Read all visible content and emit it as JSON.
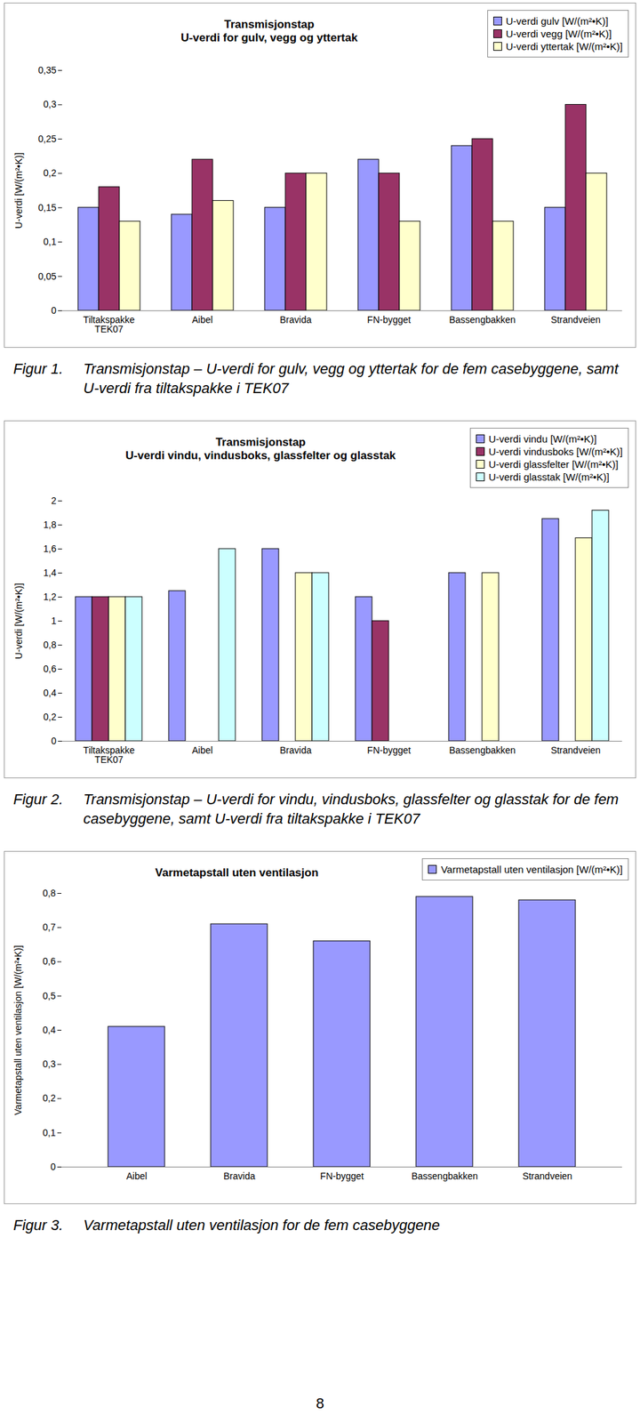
{
  "chart_data": [
    {
      "type": "bar",
      "title": "Transmisjonstap\nU-verdi for gulv, vegg og yttertak",
      "y_label": "U-verdi [W/(m²•K)]",
      "caption_number": "Figur 1.",
      "caption": "Transmisjonstap – U-verdi for gulv, vegg og yttertak for de fem casebyggene, samt U-verdi fra tiltakspakke i TEK07",
      "categories": [
        "Tiltakspakke\nTEK07",
        "Aibel",
        "Bravida",
        "FN-bygget",
        "Bassengbakken",
        "Strandveien"
      ],
      "series": [
        {
          "name": "U-verdi gulv [W/(m²•K)]",
          "color": "#9999ff",
          "values": [
            0.15,
            0.14,
            0.15,
            0.22,
            0.24,
            0.15
          ]
        },
        {
          "name": "U-verdi vegg [W/(m²•K)]",
          "color": "#993366",
          "values": [
            0.18,
            0.22,
            0.2,
            0.2,
            0.25,
            0.3
          ]
        },
        {
          "name": "U-verdi yttertak [W/(m²•K)]",
          "color": "#ffffcc",
          "values": [
            0.13,
            0.16,
            0.2,
            0.13,
            0.13,
            0.2
          ]
        }
      ],
      "ylim": [
        0,
        0.35
      ],
      "yticks": [
        0,
        {
          "value": 0.05,
          "label": "0,05"
        },
        {
          "value": 0.1,
          "label": "0,1"
        },
        {
          "value": 0.15,
          "label": "0,15"
        },
        {
          "value": 0.2,
          "label": "0,2"
        },
        {
          "value": 0.25,
          "label": "0,25"
        },
        {
          "value": 0.3,
          "label": "0,3"
        },
        {
          "value": 0.35,
          "label": "0,35"
        }
      ],
      "grid": false,
      "legend": "top-right"
    },
    {
      "type": "bar",
      "title": "Transmisjonstap\nU-verdi vindu, vindusboks, glassfelter og glasstak",
      "y_label": "U-verdi [W/(m²•K)]",
      "caption_number": "Figur 2.",
      "caption": "Transmisjonstap – U-verdi for vindu, vindusboks, glassfelter og glasstak for de fem casebyggene, samt U-verdi fra tiltakspakke i TEK07",
      "categories": [
        "Tiltakspakke\nTEK07",
        "Aibel",
        "Bravida",
        "FN-bygget",
        "Bassengbakken",
        "Strandveien"
      ],
      "series": [
        {
          "name": "U-verdi vindu [W/(m²•K)]",
          "color": "#9999ff",
          "values": [
            1.2,
            1.25,
            1.6,
            1.2,
            1.4,
            1.85
          ]
        },
        {
          "name": "U-verdi vindusboks [W/(m²•K)]",
          "color": "#993366",
          "values": [
            1.2,
            null,
            null,
            1.0,
            null,
            null
          ]
        },
        {
          "name": "U-verdi glassfelter [W/(m²•K)]",
          "color": "#ffffcc",
          "values": [
            1.2,
            null,
            1.4,
            null,
            1.4,
            1.69
          ]
        },
        {
          "name": "U-verdi glasstak [W/(m²•K)]",
          "color": "#ccffff",
          "values": [
            1.2,
            1.6,
            1.4,
            null,
            null,
            1.92
          ]
        }
      ],
      "ylim": [
        0,
        2
      ],
      "yticks": [
        0,
        {
          "value": 0.2,
          "label": "0,2"
        },
        {
          "value": 0.4,
          "label": "0,4"
        },
        {
          "value": 0.6,
          "label": "0,6"
        },
        {
          "value": 0.8,
          "label": "0,8"
        },
        1,
        {
          "value": 1.2,
          "label": "1,2"
        },
        {
          "value": 1.4,
          "label": "1,4"
        },
        {
          "value": 1.6,
          "label": "1,6"
        },
        {
          "value": 1.8,
          "label": "1,8"
        },
        2
      ],
      "grid": false,
      "legend": "top-right"
    },
    {
      "type": "bar",
      "title": "Varmetapstall uten ventilasjon",
      "y_label": "Varmetapstall uten ventilasjon [W/(m²•K)]",
      "caption_number": "Figur 3.",
      "caption": "Varmetapstall uten ventilasjon for de fem casebyggene",
      "categories": [
        "Aibel",
        "Bravida",
        "FN-bygget",
        "Bassengbakken",
        "Strandveien"
      ],
      "series": [
        {
          "name": "Varmetapstall uten ventilasjon [W/(m²•K)]",
          "color": "#9999ff",
          "values": [
            0.41,
            0.71,
            0.66,
            0.79,
            0.78
          ]
        }
      ],
      "ylim": [
        0,
        0.8
      ],
      "yticks": [
        0,
        {
          "value": 0.1,
          "label": "0,1"
        },
        {
          "value": 0.2,
          "label": "0,2"
        },
        {
          "value": 0.3,
          "label": "0,3"
        },
        {
          "value": 0.4,
          "label": "0,4"
        },
        {
          "value": 0.5,
          "label": "0,5"
        },
        {
          "value": 0.6,
          "label": "0,6"
        },
        {
          "value": 0.7,
          "label": "0,7"
        },
        {
          "value": 0.8,
          "label": "0,8"
        }
      ],
      "grid": false,
      "legend": "top-right"
    }
  ],
  "page_number": "8"
}
